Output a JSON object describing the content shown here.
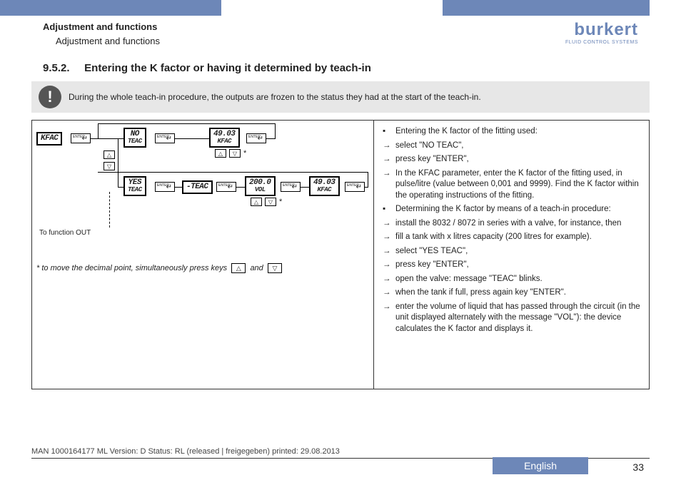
{
  "colors": {
    "accent": "#6d87b8",
    "note_bg": "#e7e7e7",
    "text": "#222222",
    "border": "#333333"
  },
  "header": {
    "breadcrumb_bold": "Adjustment and functions",
    "breadcrumb_sub": "Adjustment and functions",
    "brand": "burkert",
    "brand_sub": "FLUID CONTROL SYSTEMS"
  },
  "section": {
    "number": "9.5.2.",
    "title": "Entering the K factor or having it determined by teach-in"
  },
  "note": {
    "icon": "!",
    "text": "During the whole teach-in procedure, the outputs are frozen to the status they had at the start of the teach-in."
  },
  "diagram": {
    "lcds": {
      "kfac": "KFAC",
      "no_teac_l1": "NO",
      "no_teac_l2": "TEAC",
      "yes_teac_l1": "YES",
      "yes_teac_l2": "TEAC",
      "teac_blink": "-TEAC",
      "k1_l1": "49.03",
      "k1_l2": "KFAC",
      "vol_l1": "200.0",
      "vol_l2": "VOL",
      "k2_l1": "49.03",
      "k2_l2": "KFAC"
    },
    "enter_label": "ENTER",
    "up_key": "△",
    "down_key": "▽",
    "asterisk": "*",
    "to_function_out": "To function OUT",
    "footnote_prefix": "* to move the decimal point, simultaneously press keys",
    "footnote_and": "and"
  },
  "steps": [
    {
      "type": "bullet",
      "text": "Entering the K factor of the fitting used:"
    },
    {
      "type": "arrow",
      "text": "select \"NO TEAC\","
    },
    {
      "type": "arrow",
      "text": "press key \"ENTER\","
    },
    {
      "type": "arrow",
      "text": "In the KFAC parameter, enter the K factor of the fitting used, in pulse/litre (value between 0,001 and 9999). Find the K factor within the operating instructions of the fitting."
    },
    {
      "type": "bullet",
      "text": "Determining the K factor by means of a teach-in procedure:"
    },
    {
      "type": "arrow",
      "text": "install the 8032 / 8072 in series with a valve, for instance, then"
    },
    {
      "type": "arrow",
      "text": "fill a tank with x litres capacity (200 litres for example)."
    },
    {
      "type": "arrow",
      "text": "select \"YES TEAC\","
    },
    {
      "type": "arrow",
      "text": "press key \"ENTER\","
    },
    {
      "type": "arrow",
      "text": "open the valve: message \"TEAC\" blinks."
    },
    {
      "type": "arrow",
      "text": "when the tank if full, press again key \"ENTER\"."
    },
    {
      "type": "arrow",
      "text": "enter the volume of liquid that has passed through the circuit (in the unit displayed alternately with the message \"VOL\"): the device calculates the K factor and displays it."
    }
  ],
  "footer": {
    "meta": "MAN  1000164177  ML  Version: D Status: RL (released | freigegeben)  printed: 29.08.2013",
    "language": "English",
    "page": "33"
  }
}
